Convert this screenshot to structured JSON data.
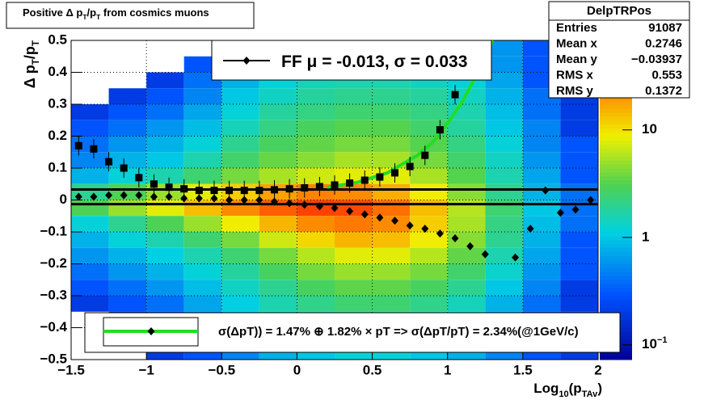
{
  "chart_data": {
    "type": "heatmap",
    "title": [
      "Positive ",
      "Δ",
      " p",
      "T",
      "/p",
      "T",
      " from cosmics muons"
    ],
    "y_label": [
      "Δ",
      " p",
      "T",
      "/p",
      "T"
    ],
    "x_label": [
      "Log",
      "10",
      "(p",
      "TAv",
      ")"
    ],
    "xlim": [
      -1.5,
      2
    ],
    "ylim": [
      -0.5,
      0.5
    ],
    "zlim": [
      0.073,
      68
    ],
    "z_log": true,
    "grid": true,
    "xticks": [
      {
        "value": -1.5,
        "label": "−1.5"
      },
      {
        "value": -1,
        "label": "−1"
      },
      {
        "value": -0.5,
        "label": "−0.5"
      },
      0,
      0.5,
      1,
      1.5,
      2
    ],
    "yticks": [
      {
        "value": -0.5,
        "label": "−0.5"
      },
      {
        "value": -0.4,
        "label": "−0.4"
      },
      {
        "value": -0.3,
        "label": "−0.3"
      },
      {
        "value": -0.2,
        "label": "−0.2"
      },
      {
        "value": -0.1,
        "label": "−0.1"
      },
      0,
      0.1,
      0.2,
      0.3,
      0.4,
      0.5
    ],
    "zticks": [
      {
        "value": 0.1,
        "label": [
          "10",
          "−1"
        ]
      },
      1,
      10
    ],
    "xbins": [
      -1.5,
      -1.25,
      -1,
      -0.75,
      -0.5,
      -0.25,
      0,
      0.25,
      0.5,
      0.75,
      1,
      1.25,
      1.5,
      1.75,
      2
    ],
    "ybins": [
      0.5,
      0.45,
      0.4,
      0.35,
      0.3,
      0.25,
      0.2,
      0.15,
      0.1,
      0.05,
      0,
      -0.05,
      -0.1,
      -0.15,
      -0.2,
      -0.25,
      -0.3,
      -0.35,
      -0.4,
      -0.45,
      -0.5
    ],
    "z": [
      [
        0,
        0,
        0,
        0,
        0.5,
        0.8,
        1,
        1,
        1,
        1,
        1,
        0.6,
        0.3,
        0.2
      ],
      [
        0,
        0,
        0,
        0.3,
        0.6,
        1,
        1.2,
        1.3,
        1.3,
        1.2,
        1,
        0.6,
        0.3,
        0.2
      ],
      [
        0,
        0,
        0.2,
        0.4,
        0.8,
        1.2,
        1.5,
        1.6,
        1.6,
        1.4,
        1.2,
        0.7,
        0.3,
        0.2
      ],
      [
        0,
        0.2,
        0.3,
        0.5,
        1,
        1.4,
        1.8,
        2,
        2,
        1.8,
        1.4,
        0.8,
        0.4,
        0.2
      ],
      [
        0.2,
        0.3,
        0.4,
        0.7,
        1.2,
        1.8,
        2.2,
        2.5,
        2.5,
        2.2,
        1.6,
        0.9,
        0.4,
        0.2
      ],
      [
        0.3,
        0.4,
        0.6,
        0.9,
        1.5,
        2.2,
        2.8,
        3.2,
        3.2,
        2.6,
        1.8,
        1,
        0.5,
        0.2
      ],
      [
        0.4,
        0.6,
        0.8,
        1.2,
        2,
        2.8,
        3.5,
        4,
        4,
        3.2,
        2.2,
        1.2,
        0.5,
        0.3
      ],
      [
        0.5,
        0.8,
        1,
        1.6,
        2.6,
        3.6,
        4.5,
        5.5,
        5.5,
        4,
        2.6,
        1.4,
        0.6,
        0.3
      ],
      [
        0.8,
        1.2,
        1.6,
        2.5,
        4,
        5.5,
        7,
        8,
        8,
        5.5,
        3.2,
        1.6,
        0.7,
        0.3
      ],
      [
        2,
        3,
        5,
        8,
        12,
        18,
        24,
        22,
        16,
        9,
        4.5,
        2,
        0.8,
        0.4
      ],
      [
        3,
        5,
        8,
        14,
        22,
        32,
        40,
        38,
        28,
        14,
        6,
        2.5,
        1,
        0.4
      ],
      [
        1.2,
        2,
        3,
        5,
        9,
        15,
        22,
        26,
        22,
        12,
        5.5,
        2.2,
        0.9,
        0.4
      ],
      [
        0.8,
        1.2,
        1.6,
        2.5,
        4,
        7,
        11,
        15,
        14,
        9,
        4.5,
        2,
        0.8,
        0.3
      ],
      [
        0.6,
        0.8,
        1.1,
        1.6,
        2.5,
        4,
        6,
        8,
        8,
        6,
        3.5,
        1.6,
        0.7,
        0.3
      ],
      [
        0.4,
        0.6,
        0.8,
        1.2,
        1.8,
        2.8,
        4,
        5,
        5,
        4,
        2.6,
        1.3,
        0.6,
        0.3
      ],
      [
        0.3,
        0.4,
        0.6,
        0.9,
        1.4,
        2,
        2.8,
        3.4,
        3.4,
        2.8,
        2,
        1,
        0.5,
        0.2
      ],
      [
        0.2,
        0.3,
        0.4,
        0.7,
        1.1,
        1.6,
        2.1,
        2.5,
        2.5,
        2.1,
        1.5,
        0.8,
        0.4,
        0.2
      ],
      [
        0,
        0.2,
        0.3,
        0.5,
        0.9,
        1.3,
        1.7,
        2,
        2,
        1.7,
        1.2,
        0.7,
        0.3,
        0.2
      ],
      [
        0,
        0,
        0.2,
        0.4,
        0.7,
        1,
        1.3,
        1.5,
        1.5,
        1.3,
        1,
        0.6,
        0.3,
        0.2
      ],
      [
        0,
        0,
        0.2,
        0.3,
        0.5,
        0.8,
        1,
        1.2,
        1.2,
        1,
        0.8,
        0.5,
        0.3,
        0.2
      ]
    ],
    "squares": {
      "x": [
        -1.45,
        -1.35,
        -1.25,
        -1.15,
        -1.05,
        -0.95,
        -0.85,
        -0.75,
        -0.65,
        -0.55,
        -0.45,
        -0.35,
        -0.25,
        -0.15,
        -0.05,
        0.05,
        0.15,
        0.25,
        0.35,
        0.45,
        0.55,
        0.65,
        0.75,
        0.85,
        0.95,
        1.05
      ],
      "values": [
        0.17,
        0.16,
        0.12,
        0.1,
        0.07,
        0.05,
        0.04,
        0.035,
        0.03,
        0.03,
        0.03,
        0.03,
        0.03,
        0.032,
        0.035,
        0.038,
        0.042,
        0.047,
        0.053,
        0.062,
        0.072,
        0.085,
        0.105,
        0.14,
        0.22,
        0.33
      ],
      "color": "#000000"
    },
    "diamonds": {
      "x": [
        -1.45,
        -1.35,
        -1.25,
        -1.15,
        -1.05,
        -0.95,
        -0.85,
        -0.75,
        -0.65,
        -0.55,
        -0.45,
        -0.35,
        -0.25,
        -0.15,
        -0.05,
        0.05,
        0.15,
        0.25,
        0.35,
        0.45,
        0.55,
        0.65,
        0.75,
        0.85,
        0.95,
        1.05,
        1.15,
        1.25,
        1.45,
        1.55,
        1.65,
        1.75,
        1.85,
        1.95
      ],
      "values": [
        0.01,
        0.01,
        0.015,
        0.015,
        0.015,
        0.01,
        0.01,
        0.005,
        0.005,
        0.005,
        0,
        0,
        0,
        -0.005,
        -0.01,
        -0.015,
        -0.02,
        -0.025,
        -0.035,
        -0.045,
        -0.055,
        -0.065,
        -0.08,
        -0.09,
        -0.105,
        -0.12,
        -0.145,
        -0.17,
        -0.18,
        -0.09,
        0.03,
        -0.04,
        -0.03,
        0
      ],
      "color": "#000000"
    },
    "fit": {
      "x": [
        0.2,
        0.4,
        0.6,
        0.8,
        0.9,
        1,
        1.1,
        1.2,
        1.3
      ],
      "values": [
        0.04,
        0.055,
        0.085,
        0.14,
        0.18,
        0.24,
        0.31,
        0.4,
        0.5
      ],
      "color": "#22dd22"
    },
    "hlines": [
      0.033,
      -0.013
    ],
    "stats": {
      "name": "DelpTRPos",
      "rows": [
        [
          "Entries",
          "91087"
        ],
        [
          "Mean x",
          "0.2746"
        ],
        [
          "Mean y",
          "−0.03937"
        ],
        [
          "RMS x",
          "0.553"
        ],
        [
          "RMS y",
          "0.1372"
        ]
      ]
    },
    "legend_top": [
      "FF ",
      "μ",
      " = -0.013, ",
      "σ",
      " =   0.033"
    ],
    "legend_bottom": "σ(ΔpT)) =  1.47% ⊕  1.82% × pT => σ(ΔpT/pT) =  2.34%(@1GeV/c)"
  }
}
